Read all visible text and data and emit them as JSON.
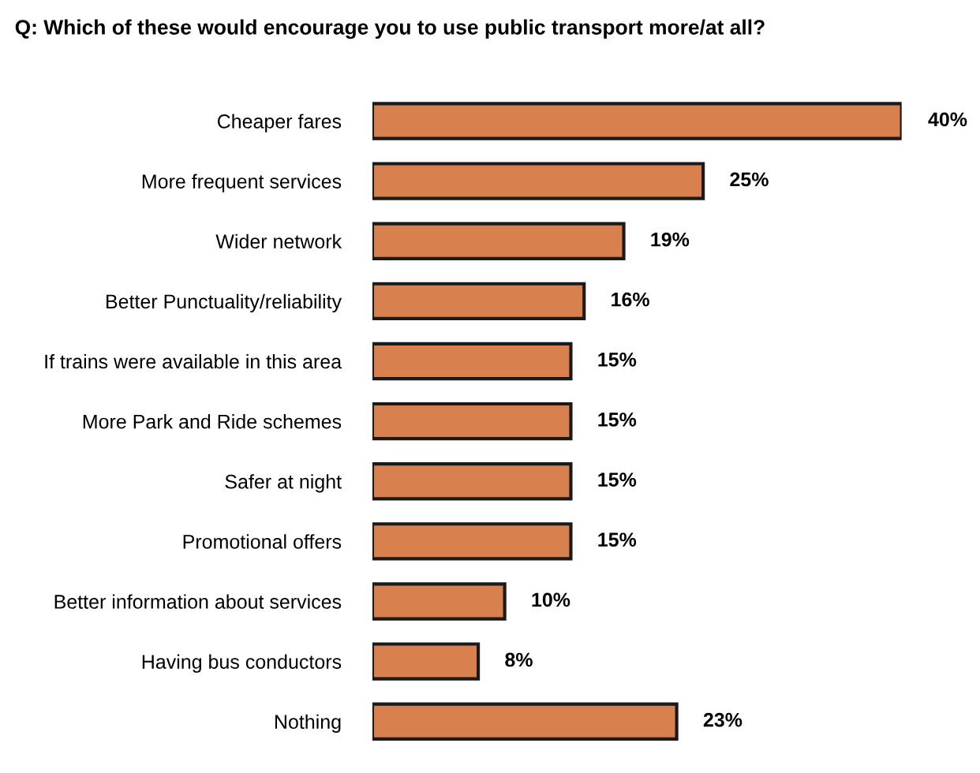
{
  "chart_data": {
    "type": "bar",
    "orientation": "horizontal",
    "title": "Q: Which of these would encourage you to use public transport more/at all?",
    "categories": [
      "Cheaper fares",
      "More frequent services",
      "Wider network",
      "Better Punctuality/reliability",
      "If trains were available in this area",
      "More Park and Ride schemes",
      "Safer at night",
      "Promotional offers",
      "Better information about services",
      "Having bus conductors",
      "Nothing"
    ],
    "values": [
      40,
      25,
      19,
      16,
      15,
      15,
      15,
      15,
      10,
      8,
      23
    ],
    "value_labels": [
      "40%",
      "25%",
      "19%",
      "16%",
      "15%",
      "15%",
      "15%",
      "15%",
      "10%",
      "8%",
      "23%"
    ],
    "color": "#d9804f",
    "grid": false,
    "legend": false
  }
}
